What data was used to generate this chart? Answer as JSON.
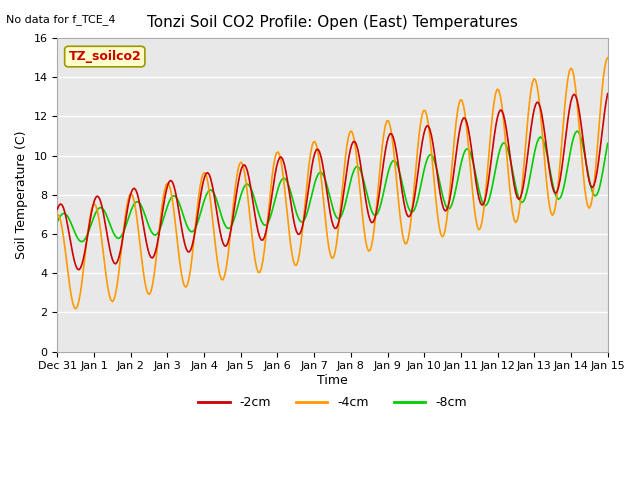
{
  "title": "Tonzi Soil CO2 Profile: Open (East) Temperatures",
  "top_left_text": "No data for f_TCE_4",
  "box_label": "TZ_soilco2",
  "ylabel": "Soil Temperature (C)",
  "xlabel": "Time",
  "ylim": [
    0,
    16
  ],
  "bg_color": "#e8e8e8",
  "line_colors": {
    "m2cm": "#cc0000",
    "m4cm": "#ff9900",
    "m8cm": "#00cc00"
  },
  "legend_labels": [
    "-2cm",
    "-4cm",
    "-8cm"
  ],
  "xtick_labels": [
    "Dec 31",
    "Jan 1",
    "Jan 2",
    "Jan 3",
    "Jan 4",
    "Jan 5",
    "Jan 6",
    "Jan 7",
    "Jan 8",
    "Jan 9",
    "Jan 10",
    "Jan 11",
    "Jan 12",
    "Jan 13",
    "Jan 14",
    "Jan 15"
  ]
}
